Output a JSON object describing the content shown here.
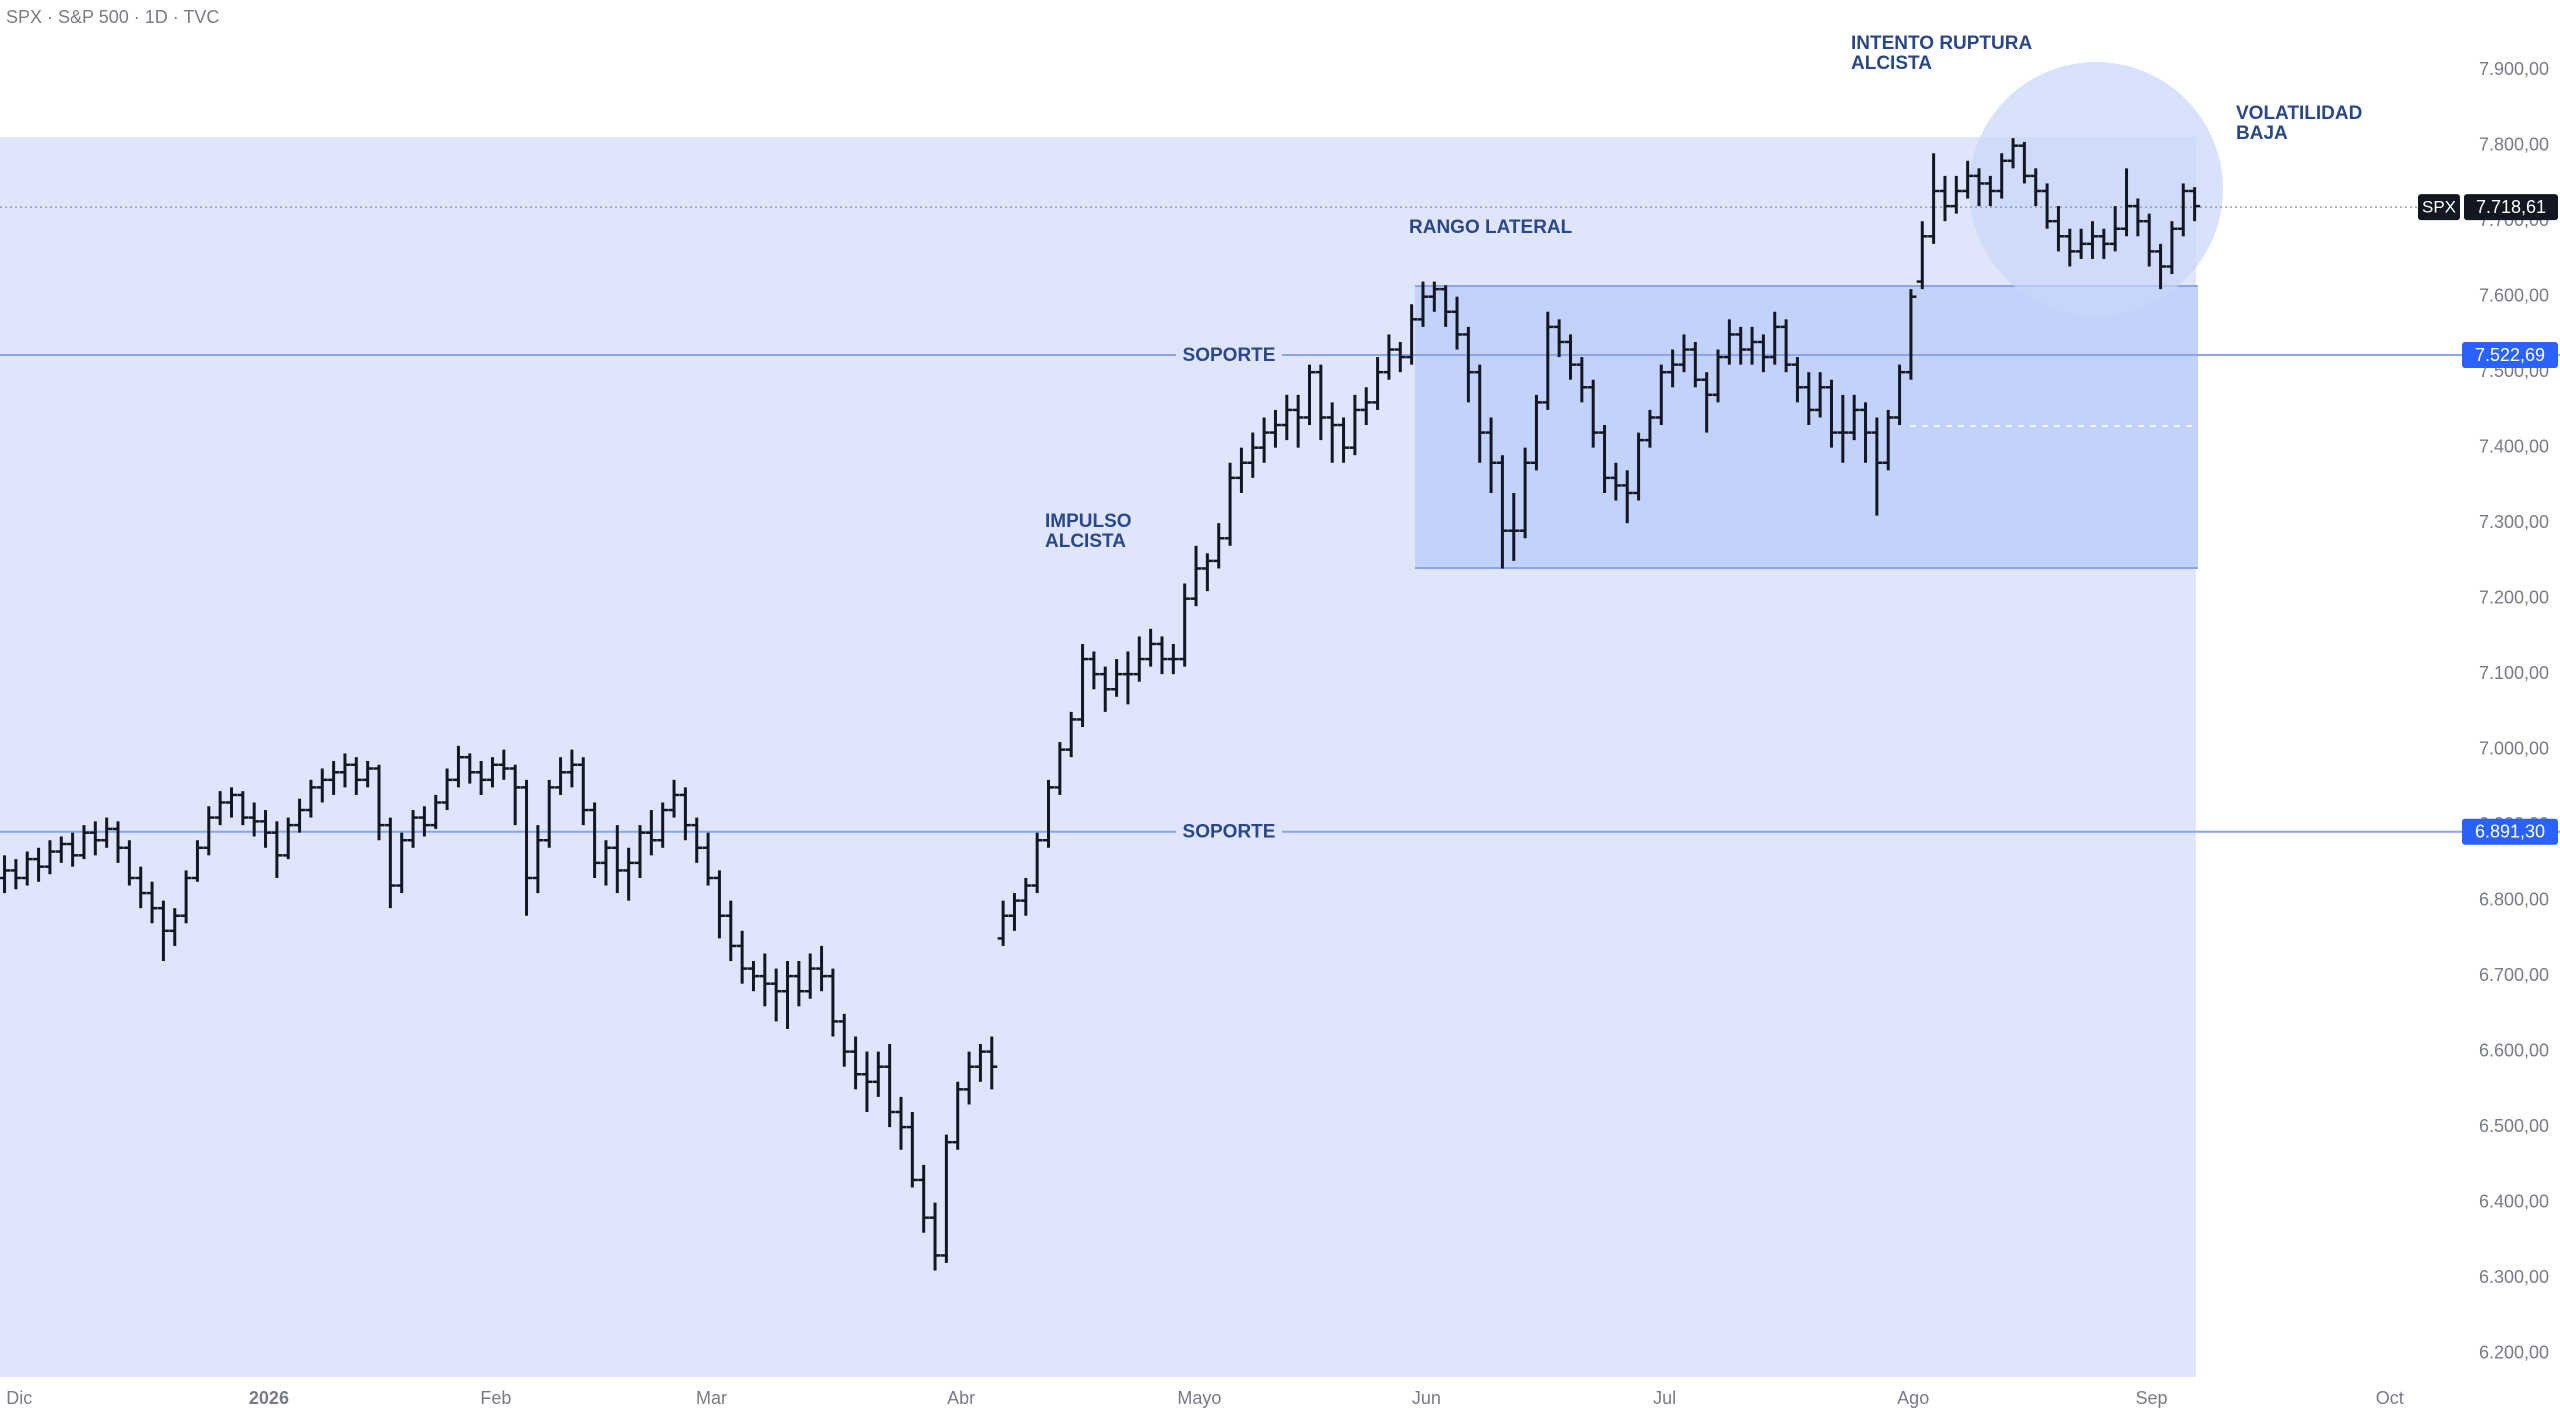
{
  "chart_data": {
    "type": "ohlc",
    "title": "SPX · S&P 500 · 1D · TVC",
    "bar_color": "#131722",
    "ylim": [
      6165,
      7993
    ],
    "xlim": [
      -0.4,
      225.2
    ],
    "yticks": [
      {
        "value": 7900,
        "label": "7.900,00"
      },
      {
        "value": 7800,
        "label": "7.800,00"
      },
      {
        "value": 7700,
        "label": "7.700,00"
      },
      {
        "value": 7600,
        "label": "7.600,00"
      },
      {
        "value": 7500,
        "label": "7.500,00"
      },
      {
        "value": 7400,
        "label": "7.400,00"
      },
      {
        "value": 7300,
        "label": "7.300,00"
      },
      {
        "value": 7200,
        "label": "7.200,00"
      },
      {
        "value": 7100,
        "label": "7.100,00"
      },
      {
        "value": 7000,
        "label": "7.000,00"
      },
      {
        "value": 6900,
        "label": "6.900,00"
      },
      {
        "value": 6800,
        "label": "6.800,00"
      },
      {
        "value": 6700,
        "label": "6.700,00"
      },
      {
        "value": 6600,
        "label": "6.600,00"
      },
      {
        "value": 6500,
        "label": "6.500,00"
      },
      {
        "value": 6400,
        "label": "6.400,00"
      },
      {
        "value": 6300,
        "label": "6.300,00"
      },
      {
        "value": 6200,
        "label": "6.200,00"
      }
    ],
    "xticks": [
      {
        "value": 1.3,
        "label": "Dic"
      },
      {
        "value": 23.3,
        "label": "2026"
      },
      {
        "value": 43.3,
        "label": "Feb"
      },
      {
        "value": 62.3,
        "label": "Mar"
      },
      {
        "value": 84.3,
        "label": "Abr"
      },
      {
        "value": 105.3,
        "label": "Mayo"
      },
      {
        "value": 125.3,
        "label": "Jun"
      },
      {
        "value": 146.3,
        "label": "Jul"
      },
      {
        "value": 168.2,
        "label": "Ago"
      },
      {
        "value": 189.2,
        "label": "Sep"
      },
      {
        "value": 210.2,
        "label": "Oct"
      }
    ],
    "levels": [
      {
        "name": "SOPORTE",
        "value": 7522.69,
        "label": "7.522,69"
      },
      {
        "name": "SOPORTE",
        "value": 6891.3,
        "label": "6.891,30"
      }
    ],
    "last_price": {
      "symbol": "SPX",
      "value": 7718.61,
      "label": "7.718,61"
    },
    "annotations": [
      {
        "lines": [
          "INTENTO RUPTURA",
          "ALCISTA"
        ]
      },
      {
        "lines": [
          "VOLATILIDAD",
          "BAJA"
        ]
      },
      {
        "lines": [
          "RANGO LATERAL"
        ]
      },
      {
        "lines": [
          "IMPULSO",
          "ALCISTA"
        ]
      }
    ],
    "bars": [
      [
        6830,
        6860,
        6810,
        6840
      ],
      [
        6840,
        6855,
        6815,
        6830
      ],
      [
        6830,
        6865,
        6820,
        6855
      ],
      [
        6855,
        6870,
        6825,
        6845
      ],
      [
        6845,
        6880,
        6835,
        6865
      ],
      [
        6865,
        6885,
        6850,
        6875
      ],
      [
        6875,
        6890,
        6845,
        6860
      ],
      [
        6860,
        6900,
        6855,
        6890
      ],
      [
        6890,
        6905,
        6860,
        6880
      ],
      [
        6880,
        6910,
        6870,
        6895
      ],
      [
        6895,
        6905,
        6850,
        6870
      ],
      [
        6870,
        6880,
        6820,
        6830
      ],
      [
        6830,
        6845,
        6790,
        6810
      ],
      [
        6810,
        6825,
        6770,
        6790
      ],
      [
        6790,
        6800,
        6720,
        6760
      ],
      [
        6760,
        6790,
        6740,
        6780
      ],
      [
        6780,
        6840,
        6770,
        6830
      ],
      [
        6830,
        6880,
        6825,
        6870
      ],
      [
        6870,
        6925,
        6860,
        6910
      ],
      [
        6910,
        6945,
        6900,
        6930
      ],
      [
        6930,
        6950,
        6910,
        6940
      ],
      [
        6940,
        6945,
        6900,
        6910
      ],
      [
        6910,
        6930,
        6885,
        6905
      ],
      [
        6905,
        6920,
        6870,
        6890
      ],
      [
        6890,
        6905,
        6830,
        6860
      ],
      [
        6860,
        6910,
        6855,
        6900
      ],
      [
        6900,
        6935,
        6890,
        6920
      ],
      [
        6920,
        6960,
        6910,
        6950
      ],
      [
        6950,
        6975,
        6930,
        6960
      ],
      [
        6960,
        6985,
        6940,
        6970
      ],
      [
        6970,
        6995,
        6950,
        6980
      ],
      [
        6980,
        6990,
        6940,
        6960
      ],
      [
        6960,
        6985,
        6950,
        6975
      ],
      [
        6975,
        6980,
        6880,
        6900
      ],
      [
        6900,
        6910,
        6790,
        6820
      ],
      [
        6820,
        6890,
        6810,
        6880
      ],
      [
        6880,
        6920,
        6870,
        6910
      ],
      [
        6910,
        6925,
        6885,
        6900
      ],
      [
        6900,
        6940,
        6895,
        6930
      ],
      [
        6930,
        6975,
        6920,
        6960
      ],
      [
        6960,
        7005,
        6950,
        6990
      ],
      [
        6990,
        6995,
        6955,
        6970
      ],
      [
        6970,
        6985,
        6940,
        6960
      ],
      [
        6960,
        6990,
        6950,
        6980
      ],
      [
        6980,
        7000,
        6960,
        6975
      ],
      [
        6975,
        6980,
        6900,
        6950
      ],
      [
        6950,
        6960,
        6780,
        6830
      ],
      [
        6830,
        6900,
        6810,
        6880
      ],
      [
        6880,
        6960,
        6870,
        6950
      ],
      [
        6950,
        6990,
        6940,
        6970
      ],
      [
        6970,
        7000,
        6950,
        6980
      ],
      [
        6980,
        6990,
        6900,
        6920
      ],
      [
        6920,
        6930,
        6830,
        6850
      ],
      [
        6850,
        6880,
        6820,
        6870
      ],
      [
        6870,
        6900,
        6810,
        6840
      ],
      [
        6840,
        6870,
        6800,
        6850
      ],
      [
        6850,
        6900,
        6830,
        6890
      ],
      [
        6890,
        6920,
        6860,
        6880
      ],
      [
        6880,
        6930,
        6870,
        6920
      ],
      [
        6920,
        6960,
        6910,
        6940
      ],
      [
        6940,
        6950,
        6880,
        6900
      ],
      [
        6900,
        6910,
        6850,
        6870
      ],
      [
        6870,
        6890,
        6820,
        6830
      ],
      [
        6830,
        6840,
        6750,
        6780
      ],
      [
        6780,
        6800,
        6720,
        6740
      ],
      [
        6740,
        6760,
        6690,
        6710
      ],
      [
        6710,
        6720,
        6680,
        6700
      ],
      [
        6700,
        6730,
        6660,
        6690
      ],
      [
        6690,
        6710,
        6640,
        6680
      ],
      [
        6680,
        6720,
        6630,
        6700
      ],
      [
        6700,
        6720,
        6660,
        6680
      ],
      [
        6680,
        6730,
        6670,
        6710
      ],
      [
        6710,
        6740,
        6680,
        6700
      ],
      [
        6700,
        6710,
        6620,
        6640
      ],
      [
        6640,
        6650,
        6580,
        6600
      ],
      [
        6600,
        6620,
        6550,
        6570
      ],
      [
        6570,
        6600,
        6520,
        6560
      ],
      [
        6560,
        6600,
        6540,
        6580
      ],
      [
        6580,
        6610,
        6500,
        6520
      ],
      [
        6520,
        6540,
        6470,
        6500
      ],
      [
        6500,
        6520,
        6420,
        6430
      ],
      [
        6430,
        6450,
        6360,
        6380
      ],
      [
        6380,
        6400,
        6310,
        6330
      ],
      [
        6330,
        6490,
        6320,
        6480
      ],
      [
        6480,
        6560,
        6470,
        6550
      ],
      [
        6550,
        6600,
        6530,
        6580
      ],
      [
        6580,
        6610,
        6560,
        6600
      ],
      [
        6600,
        6620,
        6550,
        6580
      ],
      [
        6750,
        6800,
        6740,
        6780
      ],
      [
        6780,
        6810,
        6760,
        6800
      ],
      [
        6800,
        6830,
        6780,
        6820
      ],
      [
        6820,
        6890,
        6810,
        6880
      ],
      [
        6880,
        6960,
        6870,
        6950
      ],
      [
        6950,
        7010,
        6940,
        7000
      ],
      [
        7000,
        7050,
        6990,
        7040
      ],
      [
        7040,
        7140,
        7030,
        7120
      ],
      [
        7120,
        7130,
        7080,
        7100
      ],
      [
        7100,
        7110,
        7050,
        7080
      ],
      [
        7080,
        7120,
        7070,
        7100
      ],
      [
        7100,
        7130,
        7060,
        7100
      ],
      [
        7100,
        7150,
        7090,
        7120
      ],
      [
        7120,
        7160,
        7110,
        7140
      ],
      [
        7140,
        7150,
        7100,
        7120
      ],
      [
        7120,
        7140,
        7100,
        7120
      ],
      [
        7120,
        7220,
        7110,
        7200
      ],
      [
        7200,
        7270,
        7190,
        7240
      ],
      [
        7240,
        7260,
        7210,
        7250
      ],
      [
        7250,
        7300,
        7240,
        7280
      ],
      [
        7280,
        7380,
        7270,
        7360
      ],
      [
        7360,
        7400,
        7340,
        7380
      ],
      [
        7380,
        7420,
        7360,
        7400
      ],
      [
        7400,
        7440,
        7380,
        7420
      ],
      [
        7420,
        7450,
        7400,
        7430
      ],
      [
        7430,
        7470,
        7410,
        7450
      ],
      [
        7450,
        7470,
        7400,
        7440
      ],
      [
        7440,
        7510,
        7430,
        7500
      ],
      [
        7500,
        7510,
        7410,
        7440
      ],
      [
        7440,
        7460,
        7380,
        7430
      ],
      [
        7430,
        7440,
        7380,
        7400
      ],
      [
        7400,
        7470,
        7390,
        7450
      ],
      [
        7450,
        7480,
        7430,
        7460
      ],
      [
        7460,
        7520,
        7450,
        7500
      ],
      [
        7500,
        7550,
        7490,
        7530
      ],
      [
        7530,
        7540,
        7500,
        7520
      ],
      [
        7520,
        7590,
        7510,
        7570
      ],
      [
        7570,
        7620,
        7560,
        7600
      ],
      [
        7600,
        7620,
        7580,
        7610
      ],
      [
        7610,
        7615,
        7560,
        7580
      ],
      [
        7580,
        7600,
        7530,
        7550
      ],
      [
        7550,
        7560,
        7460,
        7500
      ],
      [
        7500,
        7510,
        7380,
        7420
      ],
      [
        7420,
        7440,
        7340,
        7380
      ],
      [
        7380,
        7390,
        7240,
        7290
      ],
      [
        7290,
        7340,
        7250,
        7290
      ],
      [
        7290,
        7400,
        7280,
        7380
      ],
      [
        7380,
        7470,
        7370,
        7460
      ],
      [
        7460,
        7580,
        7450,
        7560
      ],
      [
        7560,
        7570,
        7520,
        7540
      ],
      [
        7540,
        7550,
        7490,
        7510
      ],
      [
        7510,
        7520,
        7460,
        7480
      ],
      [
        7480,
        7490,
        7400,
        7420
      ],
      [
        7420,
        7430,
        7340,
        7360
      ],
      [
        7360,
        7380,
        7330,
        7350
      ],
      [
        7350,
        7370,
        7300,
        7340
      ],
      [
        7340,
        7420,
        7330,
        7410
      ],
      [
        7410,
        7450,
        7400,
        7440
      ],
      [
        7440,
        7510,
        7430,
        7500
      ],
      [
        7500,
        7530,
        7480,
        7510
      ],
      [
        7510,
        7550,
        7500,
        7530
      ],
      [
        7530,
        7540,
        7480,
        7490
      ],
      [
        7490,
        7500,
        7420,
        7470
      ],
      [
        7470,
        7530,
        7460,
        7520
      ],
      [
        7520,
        7570,
        7510,
        7550
      ],
      [
        7550,
        7560,
        7510,
        7530
      ],
      [
        7530,
        7560,
        7510,
        7540
      ],
      [
        7540,
        7550,
        7500,
        7520
      ],
      [
        7520,
        7580,
        7510,
        7560
      ],
      [
        7560,
        7570,
        7500,
        7510
      ],
      [
        7510,
        7520,
        7460,
        7480
      ],
      [
        7480,
        7500,
        7430,
        7450
      ],
      [
        7450,
        7500,
        7440,
        7480
      ],
      [
        7480,
        7490,
        7400,
        7420
      ],
      [
        7420,
        7470,
        7380,
        7420
      ],
      [
        7420,
        7470,
        7410,
        7450
      ],
      [
        7450,
        7460,
        7380,
        7420
      ],
      [
        7420,
        7440,
        7310,
        7380
      ],
      [
        7380,
        7450,
        7370,
        7440
      ],
      [
        7440,
        7510,
        7430,
        7500
      ],
      [
        7500,
        7610,
        7490,
        7600
      ],
      [
        7620,
        7700,
        7610,
        7680
      ],
      [
        7680,
        7790,
        7670,
        7740
      ],
      [
        7740,
        7760,
        7700,
        7720
      ],
      [
        7720,
        7760,
        7710,
        7740
      ],
      [
        7740,
        7780,
        7730,
        7760
      ],
      [
        7760,
        7770,
        7720,
        7750
      ],
      [
        7750,
        7760,
        7720,
        7740
      ],
      [
        7740,
        7790,
        7730,
        7780
      ],
      [
        7780,
        7810,
        7770,
        7800
      ],
      [
        7800,
        7805,
        7750,
        7760
      ],
      [
        7760,
        7770,
        7720,
        7740
      ],
      [
        7740,
        7750,
        7690,
        7700
      ],
      [
        7700,
        7720,
        7660,
        7680
      ],
      [
        7680,
        7690,
        7640,
        7660
      ],
      [
        7660,
        7690,
        7650,
        7670
      ],
      [
        7670,
        7700,
        7650,
        7680
      ],
      [
        7680,
        7690,
        7650,
        7670
      ],
      [
        7670,
        7720,
        7660,
        7690
      ],
      [
        7690,
        7770,
        7680,
        7720
      ],
      [
        7720,
        7730,
        7680,
        7700
      ],
      [
        7700,
        7710,
        7640,
        7660
      ],
      [
        7660,
        7670,
        7610,
        7640
      ],
      [
        7640,
        7700,
        7630,
        7690
      ],
      [
        7690,
        7750,
        7680,
        7740
      ],
      [
        7740,
        7745,
        7700,
        7720
      ]
    ]
  }
}
